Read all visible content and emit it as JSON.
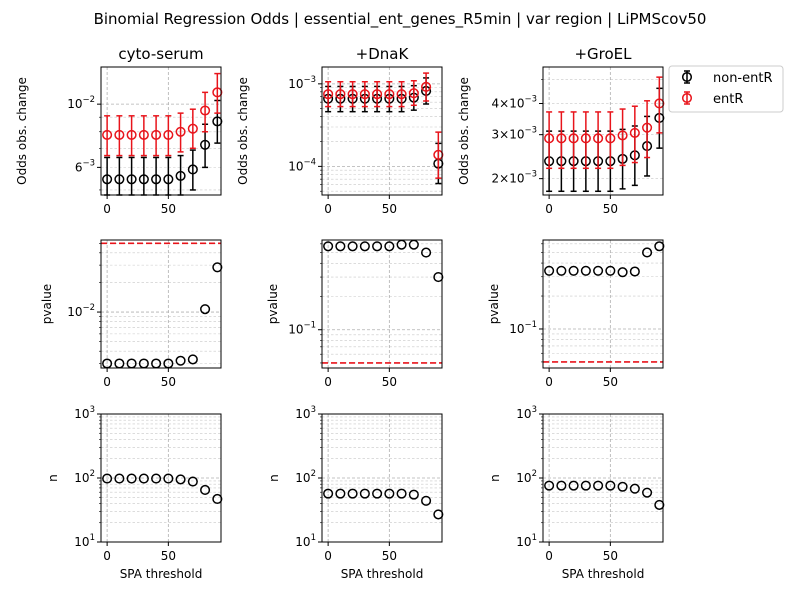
{
  "figure": {
    "title": "Binomial Regression Odds | essential_ent_genes_R5min | var region | LiPMScov50"
  },
  "colors": {
    "non_entR": "#000000",
    "entR": "#e8141b",
    "threshold_line": "#e8141b",
    "grid": "#b0b0b0"
  },
  "legend": {
    "placement": "right of top-right panel",
    "entries": [
      "non-entR",
      "entR"
    ]
  },
  "chart_data": [
    {
      "id": "odds-cyto-serum",
      "row": 0,
      "col": 0,
      "type": "scatter",
      "title": "cyto-serum",
      "xlabel": "",
      "ylabel": "Odds obs. change",
      "yscale": "log",
      "xlim": [
        -5,
        93
      ],
      "ylim": [
        0.0048,
        0.0135
      ],
      "xticks": [
        0,
        50
      ],
      "grid": true,
      "yticks": [
        {
          "value": 0.006,
          "base": "6",
          "exp": "−3"
        },
        {
          "value": 0.01,
          "base": "10",
          "exp": "−2"
        }
      ],
      "x": [
        0,
        10,
        20,
        30,
        40,
        50,
        60,
        70,
        80,
        90
      ],
      "series": [
        {
          "name": "non-entR",
          "y": [
            0.00545,
            0.00545,
            0.00545,
            0.00545,
            0.00545,
            0.00545,
            0.0056,
            0.0059,
            0.0072,
            0.0087
          ],
          "ylo": [
            0.0046,
            0.0046,
            0.0046,
            0.0046,
            0.0046,
            0.0046,
            0.0047,
            0.005,
            0.006,
            0.0073
          ],
          "yhi": [
            0.0065,
            0.0065,
            0.0065,
            0.0065,
            0.0065,
            0.0065,
            0.0066,
            0.0069,
            0.0085,
            0.0103
          ]
        },
        {
          "name": "entR",
          "y": [
            0.0078,
            0.0078,
            0.0078,
            0.0078,
            0.0078,
            0.0078,
            0.008,
            0.0082,
            0.0095,
            0.011
          ],
          "ylo": [
            0.0066,
            0.0066,
            0.0066,
            0.0066,
            0.0066,
            0.0066,
            0.0068,
            0.007,
            0.008,
            0.0093
          ],
          "yhi": [
            0.0091,
            0.0091,
            0.0091,
            0.0091,
            0.0091,
            0.0091,
            0.0093,
            0.0096,
            0.011,
            0.0128
          ]
        }
      ]
    },
    {
      "id": "odds-dnak",
      "row": 0,
      "col": 1,
      "type": "scatter",
      "title": "+DnaK",
      "xlabel": "",
      "ylabel": "Odds obs. change",
      "yscale": "log",
      "xlim": [
        -5,
        93
      ],
      "ylim": [
        4.5e-05,
        0.0016
      ],
      "xticks": [
        0,
        50
      ],
      "grid": true,
      "yticks": [
        {
          "value": 0.0001,
          "base": "10",
          "exp": "−4"
        },
        {
          "value": 0.001,
          "base": "10",
          "exp": "−3"
        }
      ],
      "x": [
        0,
        10,
        20,
        30,
        40,
        50,
        60,
        70,
        80,
        90
      ],
      "series": [
        {
          "name": "non-entR",
          "y": [
            0.00066,
            0.00066,
            0.00066,
            0.00066,
            0.00066,
            0.00066,
            0.00066,
            0.00068,
            0.00082,
            0.000108
          ],
          "ylo": [
            0.00046,
            0.00046,
            0.00046,
            0.00046,
            0.00046,
            0.00046,
            0.00046,
            0.00048,
            0.00057,
            6.2e-05
          ],
          "yhi": [
            0.00093,
            0.00093,
            0.00093,
            0.00093,
            0.00093,
            0.00093,
            0.00093,
            0.00095,
            0.00118,
            0.00019
          ]
        },
        {
          "name": "entR",
          "y": [
            0.00075,
            0.00075,
            0.00075,
            0.00075,
            0.00075,
            0.00075,
            0.00075,
            0.00077,
            0.00092,
            0.000138
          ],
          "ylo": [
            0.00053,
            0.00053,
            0.00053,
            0.00053,
            0.00053,
            0.00053,
            0.00053,
            0.00055,
            0.00062,
            7.2e-05
          ],
          "yhi": [
            0.00106,
            0.00106,
            0.00106,
            0.00106,
            0.00106,
            0.00106,
            0.00106,
            0.00109,
            0.00135,
            0.00026
          ]
        }
      ]
    },
    {
      "id": "odds-groel",
      "row": 0,
      "col": 2,
      "type": "scatter",
      "title": "+GroEL",
      "xlabel": "",
      "ylabel": "Odds obs. change",
      "yscale": "log",
      "xlim": [
        -5,
        93
      ],
      "ylim": [
        0.00172,
        0.0056
      ],
      "xticks": [
        0,
        50
      ],
      "grid": true,
      "yticks": [
        {
          "value": 0.002,
          "base": "2×10",
          "exp": "−3"
        },
        {
          "value": 0.003,
          "base": "3×10",
          "exp": "−3"
        },
        {
          "value": 0.004,
          "base": "4×10",
          "exp": "−3"
        }
      ],
      "x": [
        0,
        10,
        20,
        30,
        40,
        50,
        60,
        70,
        80,
        90
      ],
      "series": [
        {
          "name": "non-entR",
          "y": [
            0.00235,
            0.00235,
            0.00235,
            0.00235,
            0.00235,
            0.00235,
            0.0024,
            0.00248,
            0.0027,
            0.0035
          ],
          "ylo": [
            0.00178,
            0.00178,
            0.00178,
            0.00178,
            0.00178,
            0.00178,
            0.00182,
            0.00188,
            0.00205,
            0.00265
          ],
          "yhi": [
            0.0031,
            0.0031,
            0.0031,
            0.0031,
            0.0031,
            0.0031,
            0.00315,
            0.00325,
            0.00355,
            0.0046
          ]
        },
        {
          "name": "entR",
          "y": [
            0.0029,
            0.0029,
            0.0029,
            0.0029,
            0.0029,
            0.0029,
            0.00298,
            0.00305,
            0.0032,
            0.004
          ],
          "ylo": [
            0.0022,
            0.0022,
            0.0022,
            0.0022,
            0.0022,
            0.0022,
            0.00226,
            0.00232,
            0.00243,
            0.00305
          ],
          "yhi": [
            0.0037,
            0.0037,
            0.0037,
            0.0037,
            0.0037,
            0.0037,
            0.0038,
            0.0039,
            0.0041,
            0.0051
          ]
        }
      ]
    },
    {
      "id": "pvalue-cyto-serum",
      "row": 1,
      "col": 0,
      "type": "scatter",
      "title": "",
      "xlabel": "",
      "ylabel": "pvalue",
      "yscale": "log",
      "xlim": [
        -5,
        93
      ],
      "ylim": [
        0.0027,
        0.054
      ],
      "xticks": [
        0,
        50
      ],
      "grid": true,
      "threshold": 0.05,
      "yticks": [
        {
          "value": 0.01,
          "base": "10",
          "exp": "−2"
        }
      ],
      "x": [
        0,
        10,
        20,
        30,
        40,
        50,
        60,
        70,
        80,
        90
      ],
      "series": [
        {
          "name": "non-entR",
          "y": [
            0.003,
            0.003,
            0.003,
            0.003,
            0.003,
            0.003,
            0.0032,
            0.0033,
            0.0107,
            0.0285
          ]
        }
      ]
    },
    {
      "id": "pvalue-dnak",
      "row": 1,
      "col": 1,
      "type": "scatter",
      "title": "",
      "xlabel": "",
      "ylabel": "pvalue",
      "yscale": "log",
      "xlim": [
        -5,
        93
      ],
      "ylim": [
        0.045,
        0.65
      ],
      "xticks": [
        0,
        50
      ],
      "grid": true,
      "threshold": 0.05,
      "yticks": [
        {
          "value": 0.1,
          "base": "10",
          "exp": "−1"
        }
      ],
      "x": [
        0,
        10,
        20,
        30,
        40,
        50,
        60,
        70,
        80,
        90
      ],
      "series": [
        {
          "name": "non-entR",
          "y": [
            0.57,
            0.57,
            0.57,
            0.57,
            0.57,
            0.57,
            0.59,
            0.59,
            0.5,
            0.3
          ]
        }
      ]
    },
    {
      "id": "pvalue-groel",
      "row": 1,
      "col": 2,
      "type": "scatter",
      "title": "",
      "xlabel": "",
      "ylabel": "pvalue",
      "yscale": "log",
      "xlim": [
        -5,
        93
      ],
      "ylim": [
        0.044,
        0.65
      ],
      "xticks": [
        0,
        50
      ],
      "grid": true,
      "threshold": 0.05,
      "yticks": [
        {
          "value": 0.1,
          "base": "10",
          "exp": "−1"
        }
      ],
      "x": [
        0,
        10,
        20,
        30,
        40,
        50,
        60,
        70,
        80,
        90
      ],
      "series": [
        {
          "name": "non-entR",
          "y": [
            0.34,
            0.34,
            0.34,
            0.34,
            0.34,
            0.34,
            0.33,
            0.335,
            0.5,
            0.57
          ]
        }
      ]
    },
    {
      "id": "n-cyto-serum",
      "row": 2,
      "col": 0,
      "type": "scatter",
      "title": "",
      "xlabel": "SPA threshold",
      "ylabel": "n",
      "yscale": "log",
      "xlim": [
        -5,
        93
      ],
      "ylim": [
        10,
        1000
      ],
      "xticks": [
        0,
        50
      ],
      "grid": true,
      "yticks": [
        {
          "value": 10,
          "base": "10",
          "exp": "1"
        },
        {
          "value": 100,
          "base": "10",
          "exp": "2"
        },
        {
          "value": 1000,
          "base": "10",
          "exp": "3"
        }
      ],
      "x": [
        0,
        10,
        20,
        30,
        40,
        50,
        60,
        70,
        80,
        90
      ],
      "series": [
        {
          "name": "non-entR",
          "y": [
            98,
            98,
            98,
            98,
            98,
            98,
            95,
            88,
            65,
            47
          ]
        }
      ]
    },
    {
      "id": "n-dnak",
      "row": 2,
      "col": 1,
      "type": "scatter",
      "title": "",
      "xlabel": "SPA threshold",
      "ylabel": "n",
      "yscale": "log",
      "xlim": [
        -5,
        93
      ],
      "ylim": [
        10,
        1000
      ],
      "xticks": [
        0,
        50
      ],
      "grid": true,
      "yticks": [
        {
          "value": 10,
          "base": "10",
          "exp": "1"
        },
        {
          "value": 100,
          "base": "10",
          "exp": "2"
        },
        {
          "value": 1000,
          "base": "10",
          "exp": "3"
        }
      ],
      "x": [
        0,
        10,
        20,
        30,
        40,
        50,
        60,
        70,
        80,
        90
      ],
      "series": [
        {
          "name": "non-entR",
          "y": [
            57,
            57,
            57,
            57,
            57,
            57,
            57,
            55,
            44,
            27
          ]
        }
      ]
    },
    {
      "id": "n-groel",
      "row": 2,
      "col": 2,
      "type": "scatter",
      "title": "",
      "xlabel": "SPA threshold",
      "ylabel": "n",
      "yscale": "log",
      "xlim": [
        -5,
        93
      ],
      "ylim": [
        10,
        1000
      ],
      "xticks": [
        0,
        50
      ],
      "grid": true,
      "yticks": [
        {
          "value": 10,
          "base": "10",
          "exp": "1"
        },
        {
          "value": 100,
          "base": "10",
          "exp": "2"
        },
        {
          "value": 1000,
          "base": "10",
          "exp": "3"
        }
      ],
      "x": [
        0,
        10,
        20,
        30,
        40,
        50,
        60,
        70,
        80,
        90
      ],
      "series": [
        {
          "name": "non-entR",
          "y": [
            76,
            76,
            76,
            76,
            76,
            76,
            73,
            68,
            59,
            38
          ]
        }
      ]
    }
  ]
}
